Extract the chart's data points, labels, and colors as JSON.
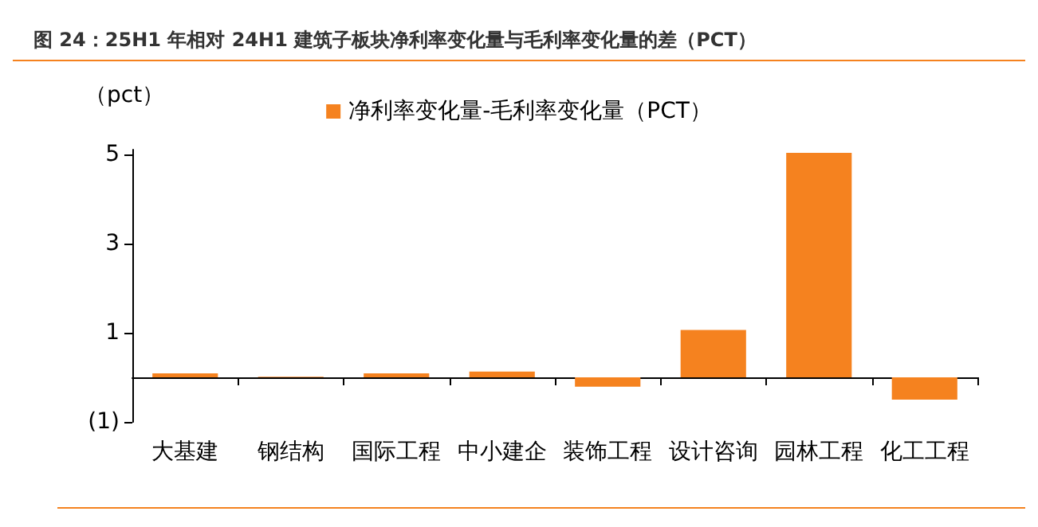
{
  "chart_data": {
    "type": "bar",
    "title": "图 24：25H1 年相对 24H1 建筑子板块净利率变化量与毛利率变化量的差（PCT）",
    "ylabel": "（pct）",
    "categories": [
      "大基建",
      "钢结构",
      "国际工程",
      "中小建企",
      "装饰工程",
      "设计咨询",
      "园林工程",
      "化工工程"
    ],
    "series": [
      {
        "name": "净利率变化量-毛利率变化量（PCT）",
        "color": "#f5821f",
        "values": [
          0.09,
          0.01,
          0.09,
          0.13,
          -0.21,
          1.06,
          5.03,
          -0.5
        ]
      }
    ],
    "ylim": [
      -1,
      5.1
    ],
    "yticks": [
      {
        "value": -1,
        "label": "(1)"
      },
      1,
      3,
      5
    ],
    "grid": false,
    "legend": "top"
  }
}
